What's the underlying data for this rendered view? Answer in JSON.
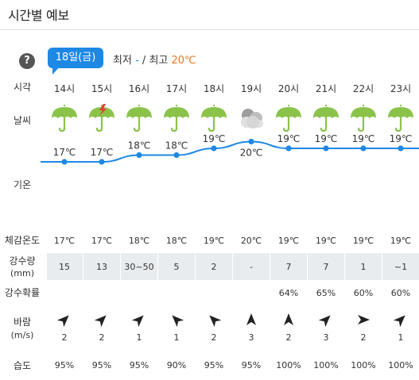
{
  "title": "시간별 예보",
  "date_badge": "18일(금)",
  "min_label": "최저",
  "min_value": "-",
  "slash": "/",
  "max_label": "최고",
  "max_value": "20℃",
  "help_glyph": "?",
  "labels": {
    "time": "시각",
    "weather": "날씨",
    "temp": "기온",
    "feels": "체감온도",
    "precip": "강수량",
    "precip_unit": "(mm)",
    "prob": "강수확률",
    "wind": "바람",
    "wind_unit": "(m/s)",
    "humidity": "습도"
  },
  "colors": {
    "accent": "#1e88e5",
    "max": "#e8761c",
    "umbrella": "#8bc34a"
  },
  "hours": [
    {
      "time": "14시",
      "icon": "umbrella-rain-icon",
      "temp": 17,
      "temp_label": "17℃",
      "feels": "17℃",
      "precip": "15",
      "prob": "",
      "wind_dir": "northeast-arrow-icon",
      "wind": "2",
      "humidity": "95%"
    },
    {
      "time": "15시",
      "icon": "umbrella-thunder-icon",
      "temp": 17,
      "temp_label": "17℃",
      "feels": "17℃",
      "precip": "13",
      "prob": "",
      "wind_dir": "northeast-arrow-icon",
      "wind": "2",
      "humidity": "95%"
    },
    {
      "time": "16시",
      "icon": "umbrella-rain-icon",
      "temp": 18,
      "temp_label": "18℃",
      "feels": "18℃",
      "precip": "30~50",
      "prob": "",
      "wind_dir": "northeast-arrow-icon",
      "wind": "1",
      "humidity": "95%"
    },
    {
      "time": "17시",
      "icon": "umbrella-rain-icon",
      "temp": 18,
      "temp_label": "18℃",
      "feels": "18℃",
      "precip": "5",
      "prob": "",
      "wind_dir": "northwest-arrow-icon",
      "wind": "1",
      "humidity": "90%"
    },
    {
      "time": "18시",
      "icon": "umbrella-rain-icon",
      "temp": 19,
      "temp_label": "19℃",
      "feels": "19℃",
      "precip": "2",
      "prob": "",
      "wind_dir": "northwest-arrow-icon",
      "wind": "2",
      "humidity": "95%"
    },
    {
      "time": "19시",
      "icon": "cloud-icon",
      "temp": 20,
      "temp_label": "20℃",
      "feels": "20℃",
      "precip": "-",
      "prob": "",
      "wind_dir": "north-arrow-icon",
      "wind": "3",
      "humidity": "95%"
    },
    {
      "time": "20시",
      "icon": "umbrella-rain-icon",
      "temp": 19,
      "temp_label": "19℃",
      "feels": "19℃",
      "precip": "7",
      "prob": "64%",
      "wind_dir": "north-arrow-icon",
      "wind": "2",
      "humidity": "100%"
    },
    {
      "time": "21시",
      "icon": "umbrella-rain-icon",
      "temp": 19,
      "temp_label": "19℃",
      "feels": "19℃",
      "precip": "7",
      "prob": "65%",
      "wind_dir": "northeast-arrow-icon",
      "wind": "3",
      "humidity": "100%"
    },
    {
      "time": "22시",
      "icon": "umbrella-rain-icon",
      "temp": 19,
      "temp_label": "19℃",
      "feels": "19℃",
      "precip": "1",
      "prob": "60%",
      "wind_dir": "east-arrow-icon",
      "wind": "2",
      "humidity": "100%"
    },
    {
      "time": "23시",
      "icon": "umbrella-rain-icon",
      "temp": 19,
      "temp_label": "19℃",
      "feels": "19℃",
      "precip": "~1",
      "prob": "60%",
      "wind_dir": "northeast-arrow-icon",
      "wind": "1",
      "humidity": "100%"
    }
  ]
}
